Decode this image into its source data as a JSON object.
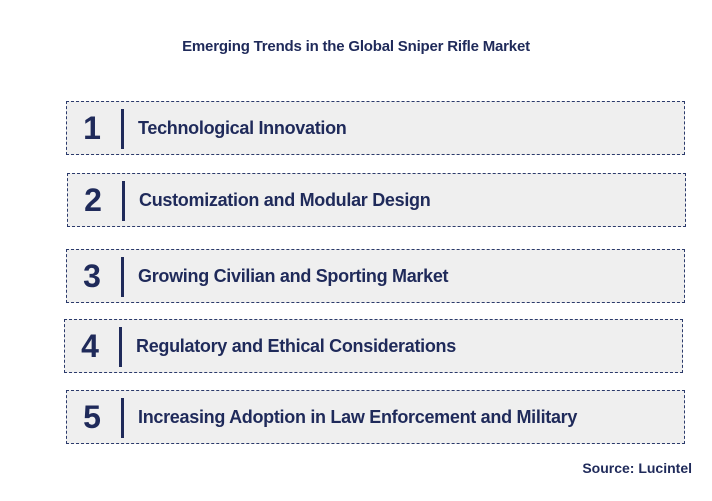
{
  "title": "Emerging Trends in the Global Sniper Rifle Market",
  "trends": [
    {
      "number": "1",
      "label": "Technological Innovation"
    },
    {
      "number": "2",
      "label": "Customization and Modular Design"
    },
    {
      "number": "3",
      "label": "Growing Civilian and Sporting Market"
    },
    {
      "number": "4",
      "label": "Regulatory and Ethical Considerations"
    },
    {
      "number": "5",
      "label": "Increasing Adoption in Law Enforcement and Military"
    }
  ],
  "source": "Source: Lucintel",
  "colors": {
    "text": "#1f2a5a",
    "box_fill": "#efefef",
    "box_border": "#2b3a6b"
  }
}
